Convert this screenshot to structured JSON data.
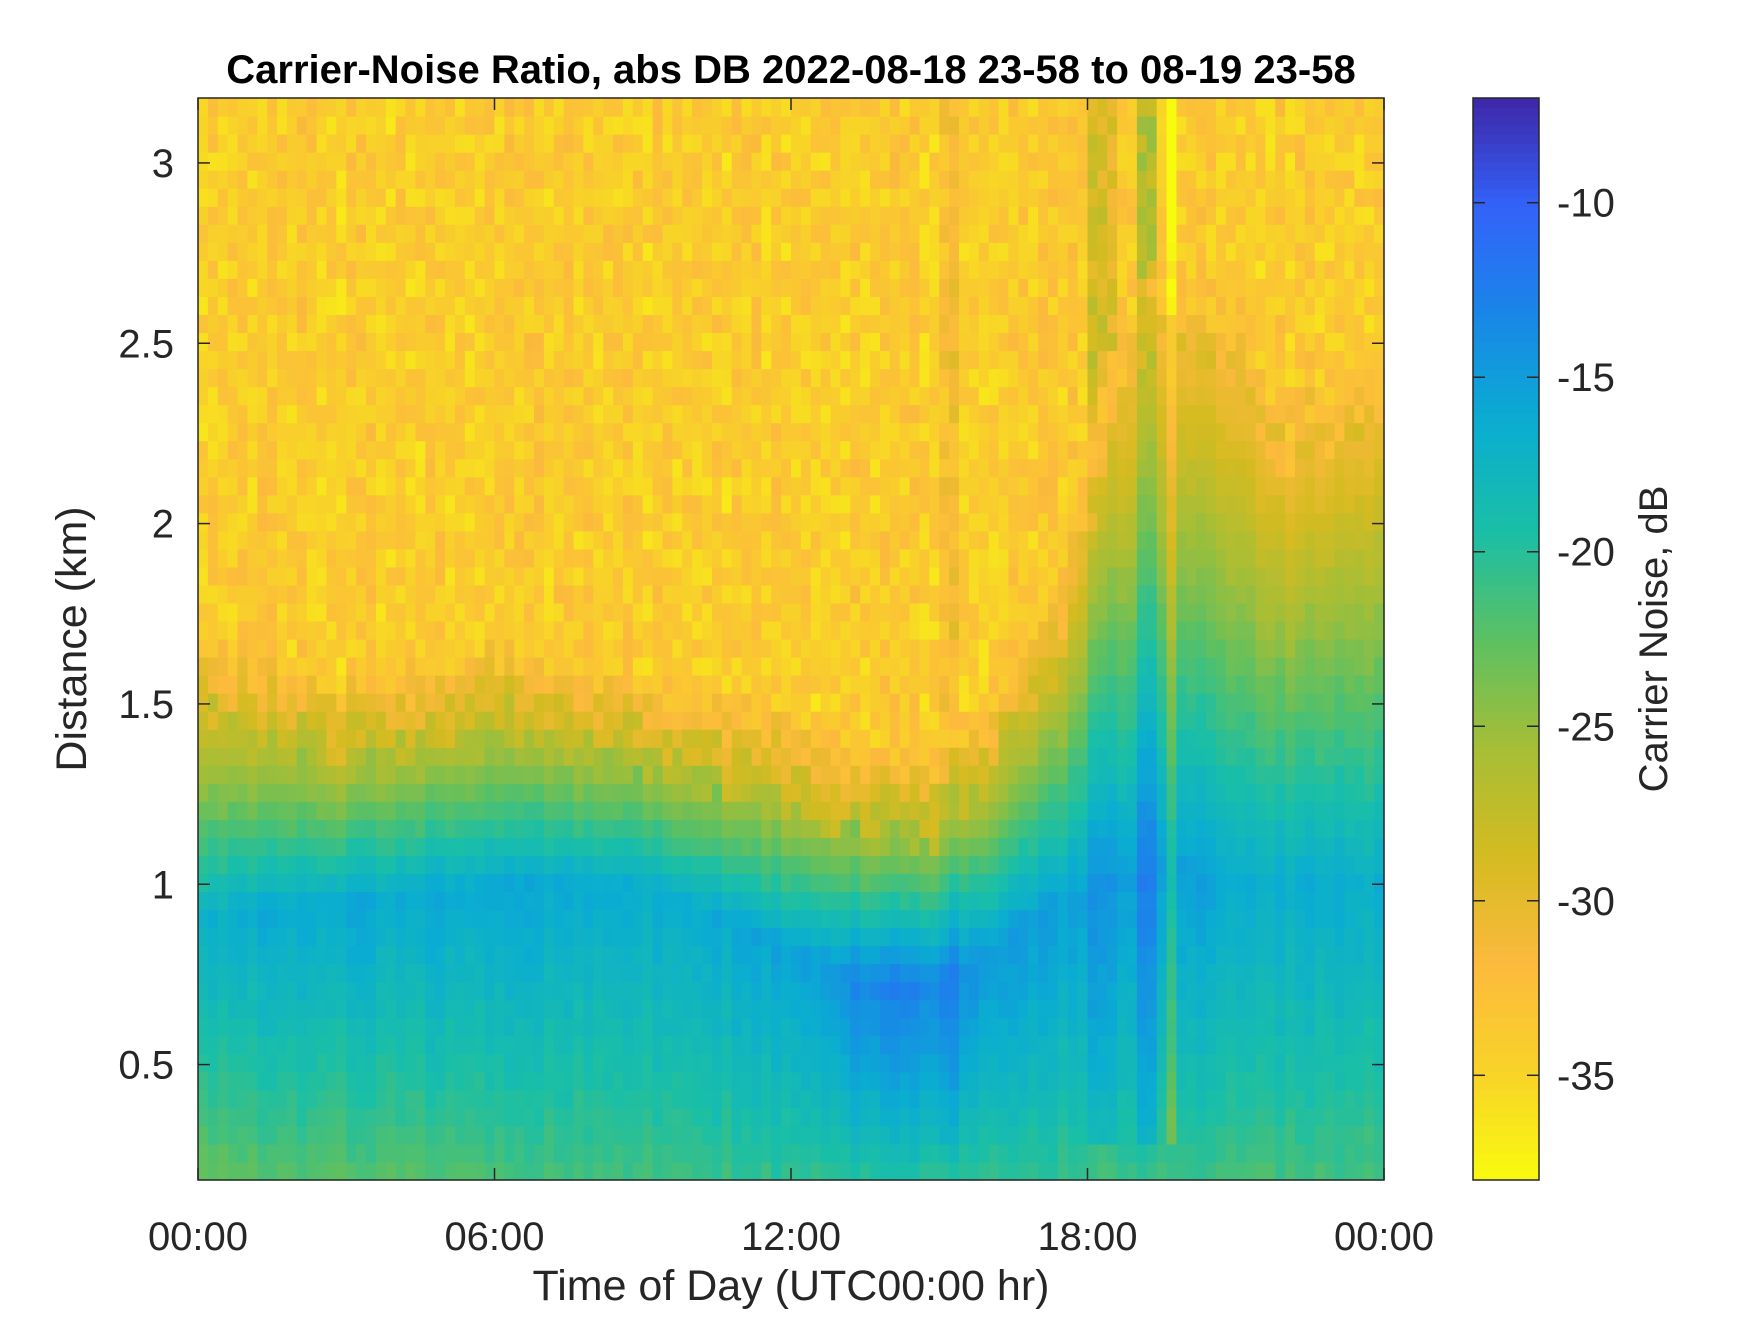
{
  "chart_data": {
    "type": "heatmap",
    "title": "Carrier-Noise Ratio, abs DB 2022-08-18 23-58 to 08-19 23-58",
    "xlabel": "Time of Day (UTC00:00 hr)",
    "ylabel": "Distance (km)",
    "colorbar_label": "Carrier Noise, dB",
    "colormap": "parula (reversed: yellow = low, dark blue = high)",
    "x_unit": "hours",
    "xlim": [
      0,
      24
    ],
    "ylim": [
      0.18,
      3.18
    ],
    "clim": [
      -38,
      -7
    ],
    "x_ticks": [
      0,
      6,
      12,
      18,
      24
    ],
    "x_tick_labels": [
      "00:00",
      "06:00",
      "12:00",
      "18:00",
      "00:00"
    ],
    "y_ticks": [
      0.5,
      1,
      1.5,
      2,
      2.5,
      3
    ],
    "y_tick_labels": [
      "0.5",
      "1",
      "1.5",
      "2",
      "2.5",
      "3"
    ],
    "colorbar_ticks": [
      -10,
      -15,
      -20,
      -25,
      -30,
      -35
    ],
    "colorbar_tick_labels": [
      "-10",
      "-15",
      "-20",
      "-25",
      "-30",
      "-35"
    ],
    "grid": false,
    "description_by_region": {
      "hours": [
        0,
        3,
        6,
        9,
        12,
        13.5,
        15,
        16,
        17.5,
        18.5,
        19.5,
        21,
        22,
        24
      ],
      "noise_floor_height_km": [
        1.75,
        1.6,
        1.7,
        1.6,
        1.5,
        1.4,
        1.4,
        1.55,
        1.9,
        2.5,
        2.8,
        2.7,
        2.4,
        2.6
      ],
      "core_height_km": [
        0.9,
        0.95,
        1.0,
        1.0,
        0.82,
        0.72,
        0.72,
        0.8,
        0.95,
        1.0,
        1.05,
        1.0,
        1.0,
        1.0
      ],
      "core_value_dB": [
        -16.5,
        -16,
        -16,
        -16.5,
        -15.5,
        -13,
        -12.8,
        -14.5,
        -15.5,
        -15.5,
        -15,
        -16,
        -16.5,
        -16.5
      ],
      "surface_value_dB": [
        -23,
        -22.5,
        -22,
        -21.5,
        -20.5,
        -20,
        -20,
        -20.5,
        -21,
        -21,
        -21,
        -21.5,
        -21.5,
        -21.5
      ],
      "noise_value_dB": -34
    },
    "vertical_streaks": [
      {
        "hour": 18.2,
        "delta_dB": 6
      },
      {
        "hour": 18.5,
        "delta_dB": 5
      },
      {
        "hour": 19.2,
        "delta_dB": 7
      },
      {
        "hour": 19.75,
        "delta_dB": -10
      },
      {
        "hour": 15.2,
        "delta_dB": 2
      }
    ]
  }
}
